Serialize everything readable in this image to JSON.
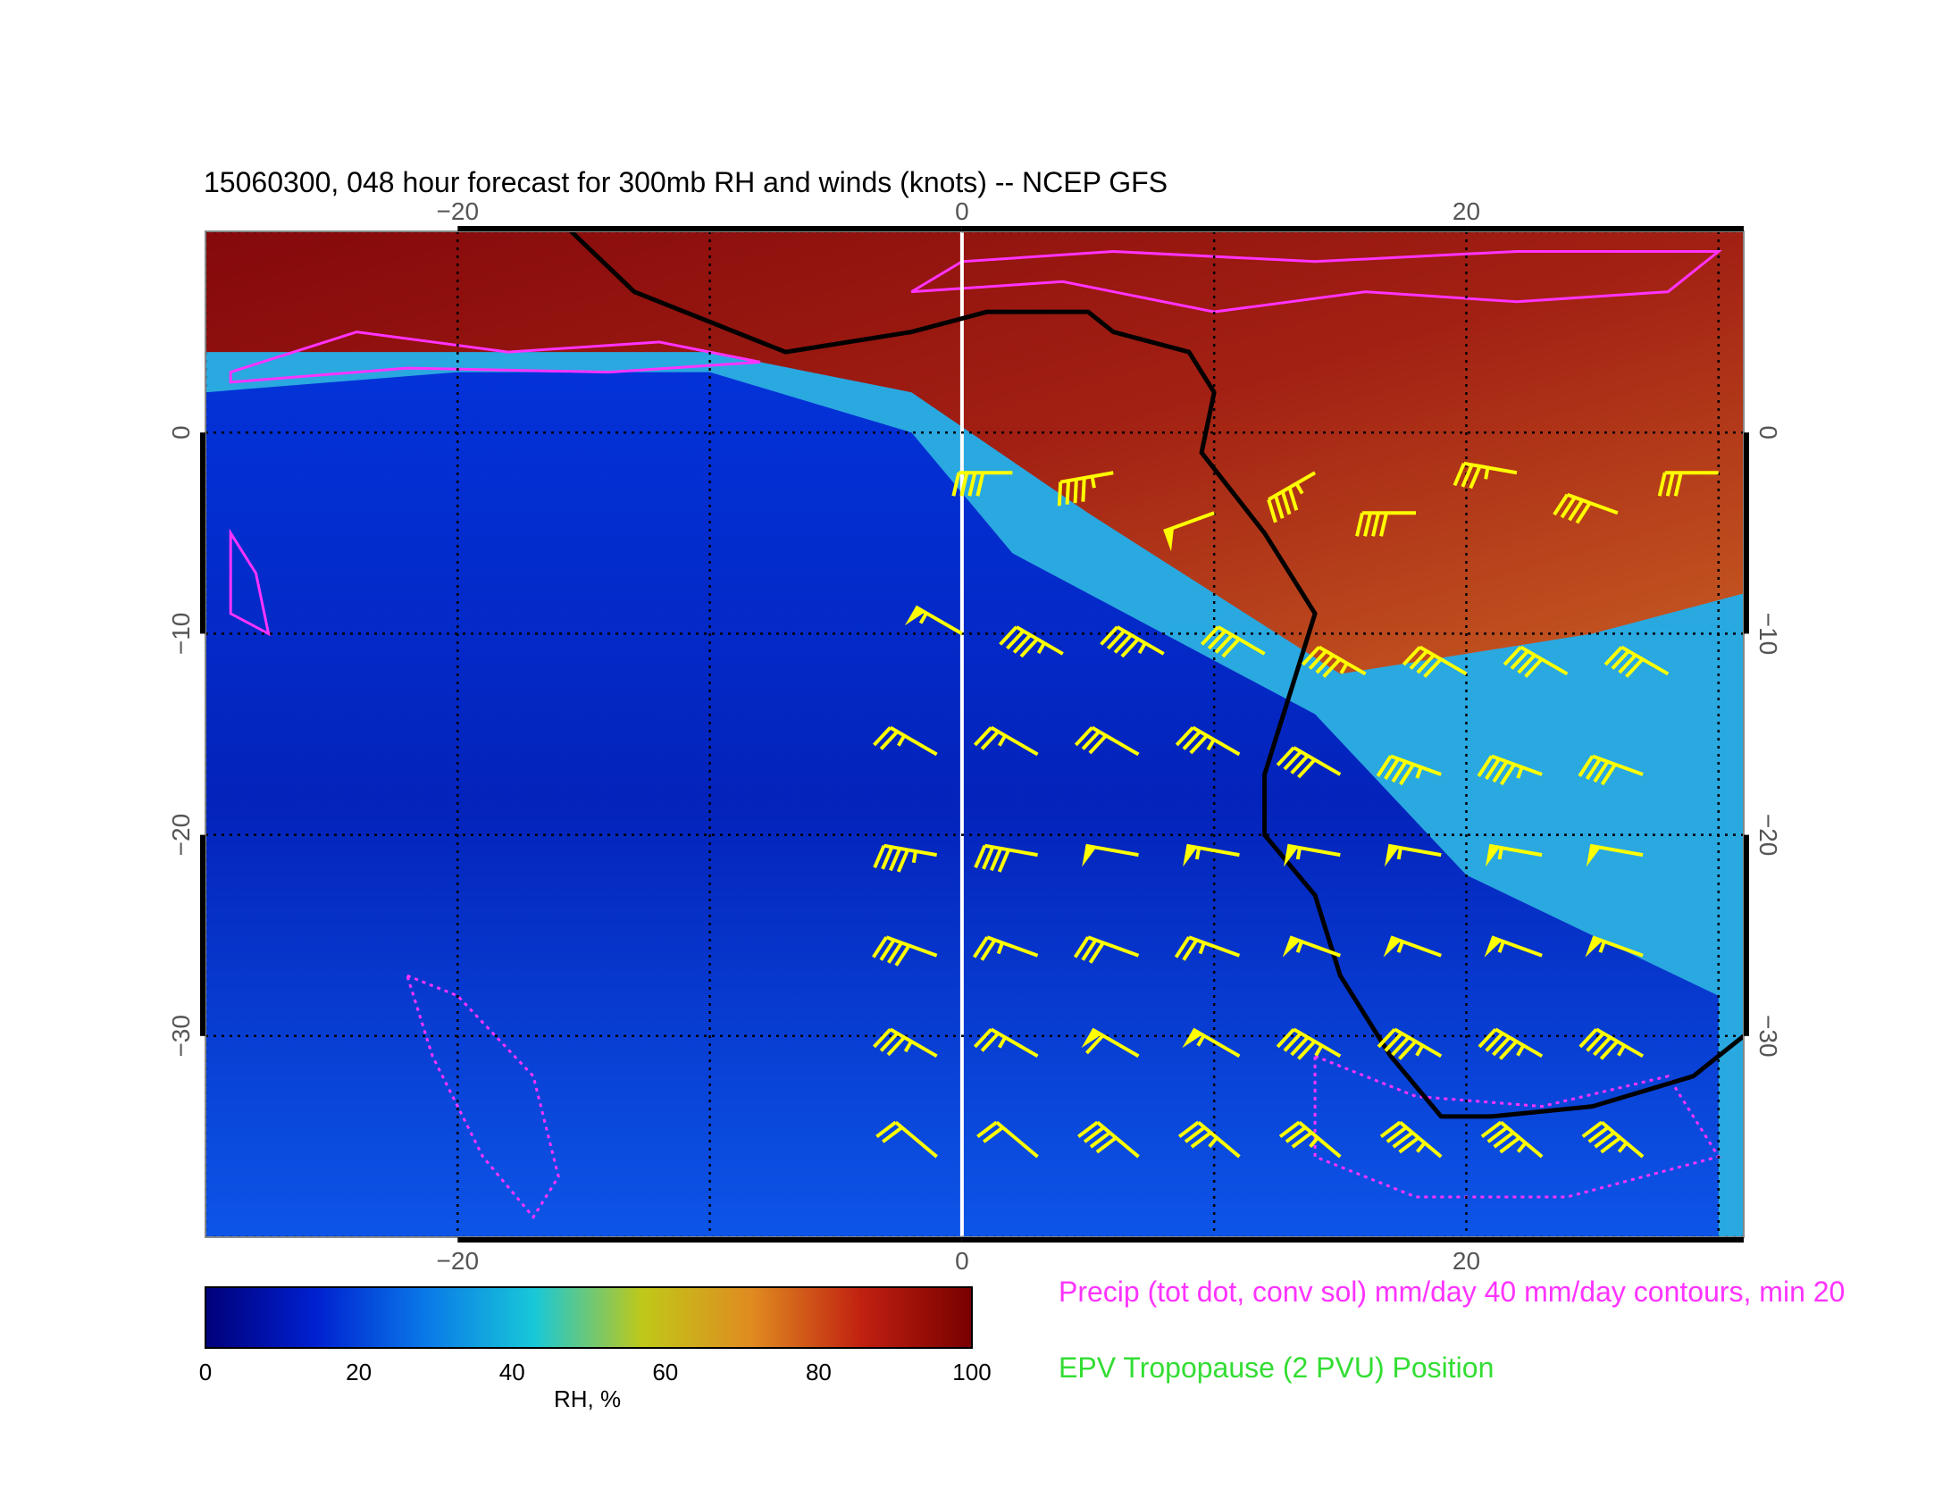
{
  "title": "15060300, 048 hour forecast for 300mb RH and winds (knots) -- NCEP GFS",
  "map": {
    "lon_range": [
      -30,
      31
    ],
    "lat_range": [
      -40,
      10
    ],
    "lon_ticks": [
      -20,
      0,
      20
    ],
    "lat_ticks": [
      0,
      -10,
      -20,
      -30
    ],
    "lon_tick_labels": [
      "−20",
      "0",
      "20"
    ],
    "lat_tick_labels": [
      "0",
      "−10",
      "−20",
      "−30"
    ],
    "grid": true,
    "colors": {
      "tropopause_line": "#000000",
      "precip_contour": "#ff33ff",
      "wind_barb": "#ffff00",
      "meridian_highlight": "#ffffff"
    },
    "rh_fields": [
      {
        "type": "dry",
        "points": [
          [
            -30,
            2
          ],
          [
            -20,
            3
          ],
          [
            -10,
            3
          ],
          [
            -2,
            0
          ],
          [
            2,
            -6
          ],
          [
            14,
            -14
          ],
          [
            20,
            -22
          ],
          [
            30,
            -28
          ],
          [
            30,
            -40
          ],
          [
            -30,
            -40
          ]
        ]
      },
      {
        "type": "moist_north",
        "points": [
          [
            -30,
            10
          ],
          [
            31,
            10
          ],
          [
            31,
            -8
          ],
          [
            25,
            -10
          ],
          [
            15,
            -12
          ],
          [
            5,
            -4
          ],
          [
            -2,
            2
          ],
          [
            -10,
            4
          ],
          [
            -30,
            4
          ]
        ]
      }
    ],
    "tropopause_path": [
      [
        -15.5,
        10
      ],
      [
        -13,
        7
      ],
      [
        -7,
        4
      ],
      [
        -2,
        5
      ],
      [
        1,
        6
      ],
      [
        5,
        6
      ],
      [
        6,
        5
      ],
      [
        9,
        4
      ],
      [
        10,
        2
      ],
      [
        9.5,
        -1
      ],
      [
        12,
        -5
      ],
      [
        14,
        -9
      ],
      [
        13,
        -13
      ],
      [
        12,
        -17
      ],
      [
        12,
        -20
      ],
      [
        14,
        -23
      ],
      [
        15,
        -27
      ],
      [
        17,
        -31
      ],
      [
        19,
        -34
      ],
      [
        21,
        -34
      ],
      [
        25,
        -33.5
      ],
      [
        29,
        -32
      ],
      [
        31,
        -30
      ]
    ],
    "wind_barbs": [
      {
        "lon": 2,
        "lat": -2,
        "dir": 270,
        "speed": 40
      },
      {
        "lon": 6,
        "lat": -2,
        "dir": 260,
        "speed": 45
      },
      {
        "lon": 10,
        "lat": -4,
        "dir": 250,
        "speed": 50
      },
      {
        "lon": 14,
        "lat": -2,
        "dir": 240,
        "speed": 45
      },
      {
        "lon": 18,
        "lat": -4,
        "dir": 270,
        "speed": 40
      },
      {
        "lon": 22,
        "lat": -2,
        "dir": 280,
        "speed": 35
      },
      {
        "lon": 26,
        "lat": -4,
        "dir": 290,
        "speed": 40
      },
      {
        "lon": 30,
        "lat": -2,
        "dir": 270,
        "speed": 30
      },
      {
        "lon": 0,
        "lat": -10,
        "dir": 300,
        "speed": 55
      },
      {
        "lon": 4,
        "lat": -11,
        "dir": 300,
        "speed": 45
      },
      {
        "lon": 8,
        "lat": -11,
        "dir": 300,
        "speed": 45
      },
      {
        "lon": 12,
        "lat": -11,
        "dir": 300,
        "speed": 40
      },
      {
        "lon": 16,
        "lat": -12,
        "dir": 300,
        "speed": 45
      },
      {
        "lon": 20,
        "lat": -12,
        "dir": 300,
        "speed": 40
      },
      {
        "lon": 24,
        "lat": -12,
        "dir": 300,
        "speed": 40
      },
      {
        "lon": 28,
        "lat": -12,
        "dir": 300,
        "speed": 40
      },
      {
        "lon": -1,
        "lat": -16,
        "dir": 300,
        "speed": 25
      },
      {
        "lon": 3,
        "lat": -16,
        "dir": 300,
        "speed": 25
      },
      {
        "lon": 7,
        "lat": -16,
        "dir": 300,
        "speed": 30
      },
      {
        "lon": 11,
        "lat": -16,
        "dir": 300,
        "speed": 35
      },
      {
        "lon": 15,
        "lat": -17,
        "dir": 300,
        "speed": 40
      },
      {
        "lon": 19,
        "lat": -17,
        "dir": 290,
        "speed": 45
      },
      {
        "lon": 23,
        "lat": -17,
        "dir": 290,
        "speed": 45
      },
      {
        "lon": 27,
        "lat": -17,
        "dir": 290,
        "speed": 40
      },
      {
        "lon": -1,
        "lat": -21,
        "dir": 280,
        "speed": 45
      },
      {
        "lon": 3,
        "lat": -21,
        "dir": 280,
        "speed": 40
      },
      {
        "lon": 7,
        "lat": -21,
        "dir": 280,
        "speed": 50
      },
      {
        "lon": 11,
        "lat": -21,
        "dir": 280,
        "speed": 55
      },
      {
        "lon": 15,
        "lat": -21,
        "dir": 280,
        "speed": 55
      },
      {
        "lon": 19,
        "lat": -21,
        "dir": 280,
        "speed": 55
      },
      {
        "lon": 23,
        "lat": -21,
        "dir": 280,
        "speed": 55
      },
      {
        "lon": 27,
        "lat": -21,
        "dir": 280,
        "speed": 50
      },
      {
        "lon": -1,
        "lat": -26,
        "dir": 290,
        "speed": 40
      },
      {
        "lon": 3,
        "lat": -26,
        "dir": 290,
        "speed": 25
      },
      {
        "lon": 7,
        "lat": -26,
        "dir": 290,
        "speed": 30
      },
      {
        "lon": 11,
        "lat": -26,
        "dir": 290,
        "speed": 25
      },
      {
        "lon": 15,
        "lat": -26,
        "dir": 290,
        "speed": 55
      },
      {
        "lon": 19,
        "lat": -26,
        "dir": 290,
        "speed": 55
      },
      {
        "lon": 23,
        "lat": -26,
        "dir": 290,
        "speed": 55
      },
      {
        "lon": 27,
        "lat": -26,
        "dir": 290,
        "speed": 55
      },
      {
        "lon": -1,
        "lat": -31,
        "dir": 300,
        "speed": 35
      },
      {
        "lon": 3,
        "lat": -31,
        "dir": 300,
        "speed": 25
      },
      {
        "lon": 7,
        "lat": -31,
        "dir": 300,
        "speed": 60
      },
      {
        "lon": 11,
        "lat": -31,
        "dir": 300,
        "speed": 55
      },
      {
        "lon": 15,
        "lat": -31,
        "dir": 300,
        "speed": 45
      },
      {
        "lon": 19,
        "lat": -31,
        "dir": 300,
        "speed": 45
      },
      {
        "lon": 23,
        "lat": -31,
        "dir": 300,
        "speed": 45
      },
      {
        "lon": 27,
        "lat": -31,
        "dir": 300,
        "speed": 45
      },
      {
        "lon": -1,
        "lat": -36,
        "dir": 310,
        "speed": 20
      },
      {
        "lon": 3,
        "lat": -36,
        "dir": 310,
        "speed": 20
      },
      {
        "lon": 7,
        "lat": -36,
        "dir": 310,
        "speed": 40
      },
      {
        "lon": 11,
        "lat": -36,
        "dir": 310,
        "speed": 35
      },
      {
        "lon": 15,
        "lat": -36,
        "dir": 310,
        "speed": 35
      },
      {
        "lon": 19,
        "lat": -36,
        "dir": 310,
        "speed": 45
      },
      {
        "lon": 23,
        "lat": -36,
        "dir": 310,
        "speed": 45
      },
      {
        "lon": 27,
        "lat": -36,
        "dir": 310,
        "speed": 45
      }
    ],
    "precip_contours": [
      [
        [
          -29,
          3
        ],
        [
          -24,
          5
        ],
        [
          -18,
          4
        ],
        [
          -12,
          4.5
        ],
        [
          -8,
          3.5
        ],
        [
          -14,
          3
        ],
        [
          -22,
          3.2
        ],
        [
          -29,
          2.5
        ]
      ],
      [
        [
          -2,
          7
        ],
        [
          4,
          7.5
        ],
        [
          10,
          6
        ],
        [
          16,
          7
        ],
        [
          22,
          6.5
        ],
        [
          28,
          7
        ],
        [
          30,
          9
        ],
        [
          22,
          9
        ],
        [
          14,
          8.5
        ],
        [
          6,
          9
        ],
        [
          0,
          8.5
        ]
      ],
      [
        [
          -29,
          -5
        ],
        [
          -28,
          -7
        ],
        [
          -27.5,
          -10
        ],
        [
          -29,
          -9
        ]
      ],
      [
        [
          -22,
          -27
        ],
        [
          -20,
          -28
        ],
        [
          -17,
          -32
        ],
        [
          -16,
          -37
        ],
        [
          -17,
          -39
        ],
        [
          -19,
          -36
        ],
        [
          -21,
          -31
        ]
      ],
      [
        [
          14,
          -31
        ],
        [
          18,
          -33
        ],
        [
          23,
          -33.5
        ],
        [
          28,
          -32
        ],
        [
          30,
          -36
        ],
        [
          24,
          -38
        ],
        [
          18,
          -38
        ],
        [
          14,
          -36
        ]
      ]
    ]
  },
  "colorbar": {
    "min": 0,
    "max": 100,
    "ticks": [
      0,
      20,
      40,
      60,
      80,
      100
    ],
    "tick_labels": [
      "0",
      "20",
      "40",
      "60",
      "80",
      "100"
    ],
    "label": "RH, %",
    "colors": [
      "#00007a",
      "#0020d0",
      "#0a78e8",
      "#18c8d8",
      "#c0c818",
      "#e08a20",
      "#c02010",
      "#780000"
    ]
  },
  "legend": {
    "precip": "Precip (tot dot, conv sol) mm/day 40 mm/day contours, min 20",
    "epv": "EPV Tropopause (2 PVU) Position"
  }
}
